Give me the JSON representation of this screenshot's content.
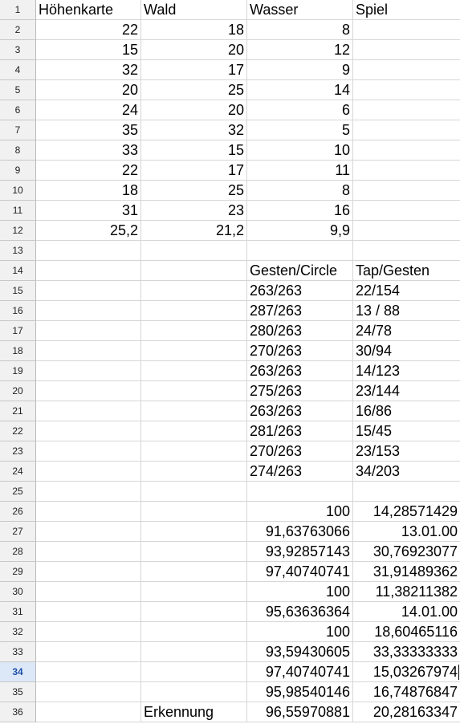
{
  "sheet": {
    "active_row": "34",
    "rows": [
      {
        "n": "1",
        "c": [
          {
            "v": "Höhenkarte",
            "t": "txt"
          },
          {
            "v": "Wald",
            "t": "txt"
          },
          {
            "v": "Wasser",
            "t": "txt"
          },
          {
            "v": "Spiel",
            "t": "txt"
          }
        ]
      },
      {
        "n": "2",
        "c": [
          {
            "v": "22",
            "t": "num"
          },
          {
            "v": "18",
            "t": "num"
          },
          {
            "v": "8",
            "t": "num"
          },
          {
            "v": "",
            "t": "txt"
          }
        ]
      },
      {
        "n": "3",
        "c": [
          {
            "v": "15",
            "t": "num"
          },
          {
            "v": "20",
            "t": "num"
          },
          {
            "v": "12",
            "t": "num"
          },
          {
            "v": "",
            "t": "txt"
          }
        ]
      },
      {
        "n": "4",
        "c": [
          {
            "v": "32",
            "t": "num"
          },
          {
            "v": "17",
            "t": "num"
          },
          {
            "v": "9",
            "t": "num"
          },
          {
            "v": "",
            "t": "txt"
          }
        ]
      },
      {
        "n": "5",
        "c": [
          {
            "v": "20",
            "t": "num"
          },
          {
            "v": "25",
            "t": "num"
          },
          {
            "v": "14",
            "t": "num"
          },
          {
            "v": "",
            "t": "txt"
          }
        ]
      },
      {
        "n": "6",
        "c": [
          {
            "v": "24",
            "t": "num"
          },
          {
            "v": "20",
            "t": "num"
          },
          {
            "v": "6",
            "t": "num"
          },
          {
            "v": "",
            "t": "txt"
          }
        ]
      },
      {
        "n": "7",
        "c": [
          {
            "v": "35",
            "t": "num"
          },
          {
            "v": "32",
            "t": "num"
          },
          {
            "v": "5",
            "t": "num"
          },
          {
            "v": "",
            "t": "txt"
          }
        ]
      },
      {
        "n": "8",
        "c": [
          {
            "v": "33",
            "t": "num"
          },
          {
            "v": "15",
            "t": "num"
          },
          {
            "v": "10",
            "t": "num"
          },
          {
            "v": "",
            "t": "txt"
          }
        ]
      },
      {
        "n": "9",
        "c": [
          {
            "v": "22",
            "t": "num"
          },
          {
            "v": "17",
            "t": "num"
          },
          {
            "v": "11",
            "t": "num"
          },
          {
            "v": "",
            "t": "txt"
          }
        ]
      },
      {
        "n": "10",
        "c": [
          {
            "v": "18",
            "t": "num"
          },
          {
            "v": "25",
            "t": "num"
          },
          {
            "v": "8",
            "t": "num"
          },
          {
            "v": "",
            "t": "txt"
          }
        ]
      },
      {
        "n": "11",
        "c": [
          {
            "v": "31",
            "t": "num"
          },
          {
            "v": "23",
            "t": "num"
          },
          {
            "v": "16",
            "t": "num"
          },
          {
            "v": "",
            "t": "txt"
          }
        ]
      },
      {
        "n": "12",
        "c": [
          {
            "v": "25,2",
            "t": "num"
          },
          {
            "v": "21,2",
            "t": "num"
          },
          {
            "v": "9,9",
            "t": "num"
          },
          {
            "v": "",
            "t": "txt"
          }
        ]
      },
      {
        "n": "13",
        "c": [
          {
            "v": "",
            "t": "txt"
          },
          {
            "v": "",
            "t": "txt"
          },
          {
            "v": "",
            "t": "txt"
          },
          {
            "v": "",
            "t": "txt"
          }
        ]
      },
      {
        "n": "14",
        "c": [
          {
            "v": "",
            "t": "txt"
          },
          {
            "v": "",
            "t": "txt"
          },
          {
            "v": "Gesten/Circle",
            "t": "txt"
          },
          {
            "v": "Tap/Gesten",
            "t": "txt"
          }
        ]
      },
      {
        "n": "15",
        "c": [
          {
            "v": "",
            "t": "txt"
          },
          {
            "v": "",
            "t": "txt"
          },
          {
            "v": "263/263",
            "t": "txt"
          },
          {
            "v": "22/154",
            "t": "txt"
          }
        ]
      },
      {
        "n": "16",
        "c": [
          {
            "v": "",
            "t": "txt"
          },
          {
            "v": "",
            "t": "txt"
          },
          {
            "v": "287/263",
            "t": "txt"
          },
          {
            "v": "13 / 88",
            "t": "txt"
          }
        ]
      },
      {
        "n": "17",
        "c": [
          {
            "v": "",
            "t": "txt"
          },
          {
            "v": "",
            "t": "txt"
          },
          {
            "v": "280/263",
            "t": "txt"
          },
          {
            "v": "24/78",
            "t": "txt"
          }
        ]
      },
      {
        "n": "18",
        "c": [
          {
            "v": "",
            "t": "txt"
          },
          {
            "v": "",
            "t": "txt"
          },
          {
            "v": "270/263",
            "t": "txt"
          },
          {
            "v": "30/94",
            "t": "txt"
          }
        ]
      },
      {
        "n": "19",
        "c": [
          {
            "v": "",
            "t": "txt"
          },
          {
            "v": "",
            "t": "txt"
          },
          {
            "v": "263/263",
            "t": "txt"
          },
          {
            "v": "14/123",
            "t": "txt"
          }
        ]
      },
      {
        "n": "20",
        "c": [
          {
            "v": "",
            "t": "txt"
          },
          {
            "v": "",
            "t": "txt"
          },
          {
            "v": "275/263",
            "t": "txt"
          },
          {
            "v": "23/144",
            "t": "txt"
          }
        ]
      },
      {
        "n": "21",
        "c": [
          {
            "v": "",
            "t": "txt"
          },
          {
            "v": "",
            "t": "txt"
          },
          {
            "v": "263/263",
            "t": "txt"
          },
          {
            "v": "16/86",
            "t": "txt"
          }
        ]
      },
      {
        "n": "22",
        "c": [
          {
            "v": "",
            "t": "txt"
          },
          {
            "v": "",
            "t": "txt"
          },
          {
            "v": "281/263",
            "t": "txt"
          },
          {
            "v": "15/45",
            "t": "txt"
          }
        ]
      },
      {
        "n": "23",
        "c": [
          {
            "v": "",
            "t": "txt"
          },
          {
            "v": "",
            "t": "txt"
          },
          {
            "v": "270/263",
            "t": "txt"
          },
          {
            "v": "23/153",
            "t": "txt"
          }
        ]
      },
      {
        "n": "24",
        "c": [
          {
            "v": "",
            "t": "txt"
          },
          {
            "v": "",
            "t": "txt"
          },
          {
            "v": "274/263",
            "t": "txt"
          },
          {
            "v": "34/203",
            "t": "txt"
          }
        ]
      },
      {
        "n": "25",
        "c": [
          {
            "v": "",
            "t": "txt"
          },
          {
            "v": "",
            "t": "txt"
          },
          {
            "v": "",
            "t": "txt"
          },
          {
            "v": "",
            "t": "txt"
          }
        ]
      },
      {
        "n": "26",
        "c": [
          {
            "v": "",
            "t": "txt"
          },
          {
            "v": "",
            "t": "txt"
          },
          {
            "v": "100",
            "t": "num"
          },
          {
            "v": "14,28571429",
            "t": "num"
          }
        ]
      },
      {
        "n": "27",
        "c": [
          {
            "v": "",
            "t": "txt"
          },
          {
            "v": "",
            "t": "txt"
          },
          {
            "v": "91,63763066",
            "t": "num"
          },
          {
            "v": "13.01.00",
            "t": "num"
          }
        ]
      },
      {
        "n": "28",
        "c": [
          {
            "v": "",
            "t": "txt"
          },
          {
            "v": "",
            "t": "txt"
          },
          {
            "v": "93,92857143",
            "t": "num"
          },
          {
            "v": "30,76923077",
            "t": "num"
          }
        ]
      },
      {
        "n": "29",
        "c": [
          {
            "v": "",
            "t": "txt"
          },
          {
            "v": "",
            "t": "txt"
          },
          {
            "v": "97,40740741",
            "t": "num"
          },
          {
            "v": "31,91489362",
            "t": "num"
          }
        ]
      },
      {
        "n": "30",
        "c": [
          {
            "v": "",
            "t": "txt"
          },
          {
            "v": "",
            "t": "txt"
          },
          {
            "v": "100",
            "t": "num"
          },
          {
            "v": "11,38211382",
            "t": "num"
          }
        ]
      },
      {
        "n": "31",
        "c": [
          {
            "v": "",
            "t": "txt"
          },
          {
            "v": "",
            "t": "txt"
          },
          {
            "v": "95,63636364",
            "t": "num"
          },
          {
            "v": "14.01.00",
            "t": "num"
          }
        ]
      },
      {
        "n": "32",
        "c": [
          {
            "v": "",
            "t": "txt"
          },
          {
            "v": "",
            "t": "txt"
          },
          {
            "v": "100",
            "t": "num"
          },
          {
            "v": "18,60465116",
            "t": "num"
          }
        ]
      },
      {
        "n": "33",
        "c": [
          {
            "v": "",
            "t": "txt"
          },
          {
            "v": "",
            "t": "txt"
          },
          {
            "v": "93,59430605",
            "t": "num"
          },
          {
            "v": "33,33333333",
            "t": "num"
          }
        ]
      },
      {
        "n": "34",
        "c": [
          {
            "v": "",
            "t": "txt"
          },
          {
            "v": "",
            "t": "txt"
          },
          {
            "v": "97,40740741",
            "t": "num"
          },
          {
            "v": "15,03267974",
            "t": "num"
          }
        ]
      },
      {
        "n": "35",
        "c": [
          {
            "v": "",
            "t": "txt"
          },
          {
            "v": "",
            "t": "txt"
          },
          {
            "v": "95,98540146",
            "t": "num"
          },
          {
            "v": "16,74876847",
            "t": "num"
          }
        ]
      },
      {
        "n": "36",
        "c": [
          {
            "v": "",
            "t": "txt"
          },
          {
            "v": "Erkennung",
            "t": "txt"
          },
          {
            "v": "96,55970881",
            "t": "num"
          },
          {
            "v": "20,28163347",
            "t": "num"
          }
        ]
      }
    ]
  }
}
